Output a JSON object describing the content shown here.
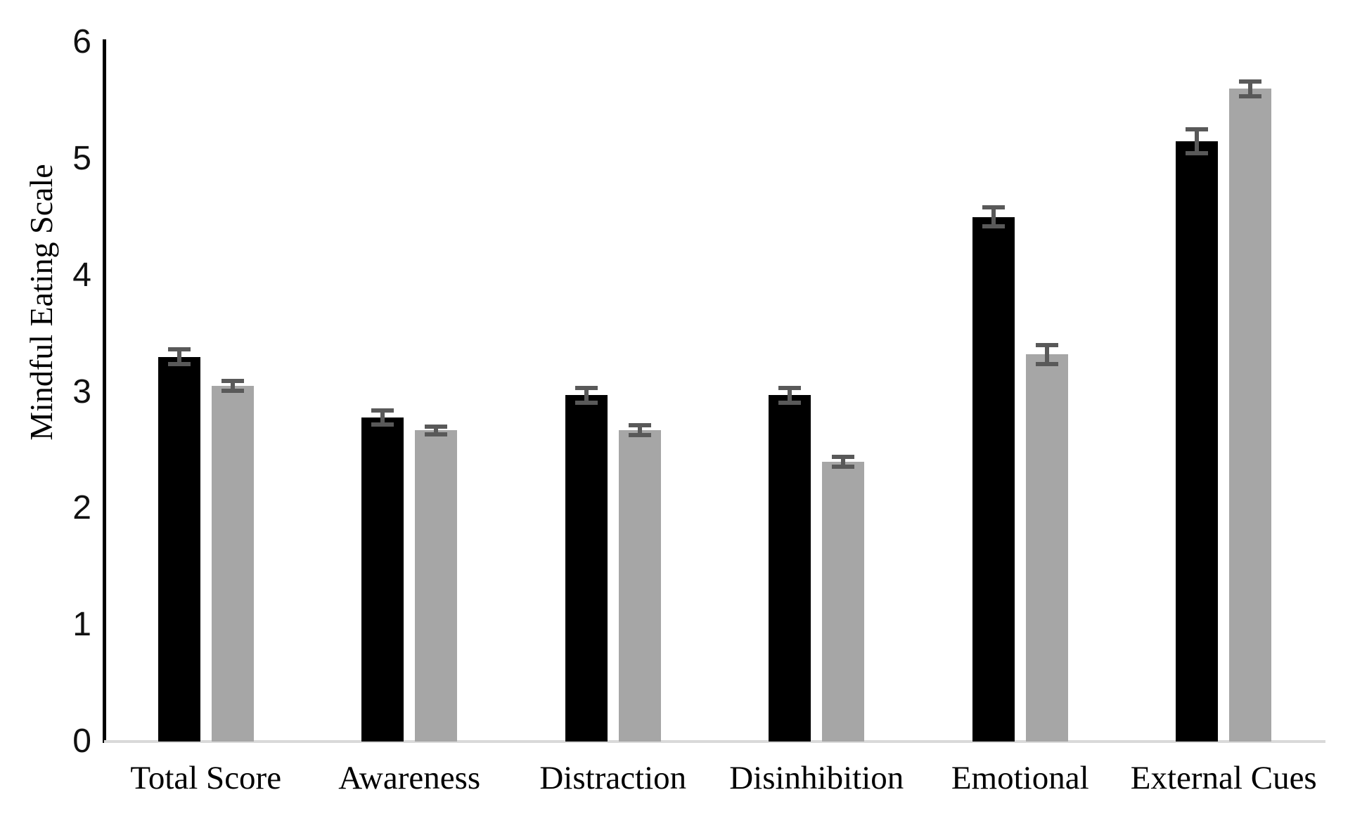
{
  "chart_data": {
    "type": "bar",
    "title": "",
    "ylabel": "Mindful Eating Scale",
    "xlabel": "",
    "ylim": [
      0,
      6
    ],
    "yticks": [
      0,
      1,
      2,
      3,
      4,
      5,
      6
    ],
    "grid": false,
    "legend_position": "none",
    "categories": [
      "Total Score",
      "Awareness",
      "Distraction",
      "Disinhibition",
      "Emotional",
      "External Cues"
    ],
    "series": [
      {
        "name": "black",
        "color": "#000000",
        "values": [
          3.3,
          2.78,
          2.97,
          2.97,
          4.5,
          5.15
        ],
        "errors": [
          0.08,
          0.08,
          0.08,
          0.08,
          0.1,
          0.12
        ]
      },
      {
        "name": "gray",
        "color": "#a6a6a6",
        "values": [
          3.05,
          2.67,
          2.67,
          2.4,
          3.32,
          5.6
        ],
        "errors": [
          0.06,
          0.05,
          0.06,
          0.06,
          0.1,
          0.08
        ]
      }
    ],
    "error_bar_color": "#595959",
    "axis_color": "#000000",
    "baseline_color": "#d9d9d9"
  }
}
